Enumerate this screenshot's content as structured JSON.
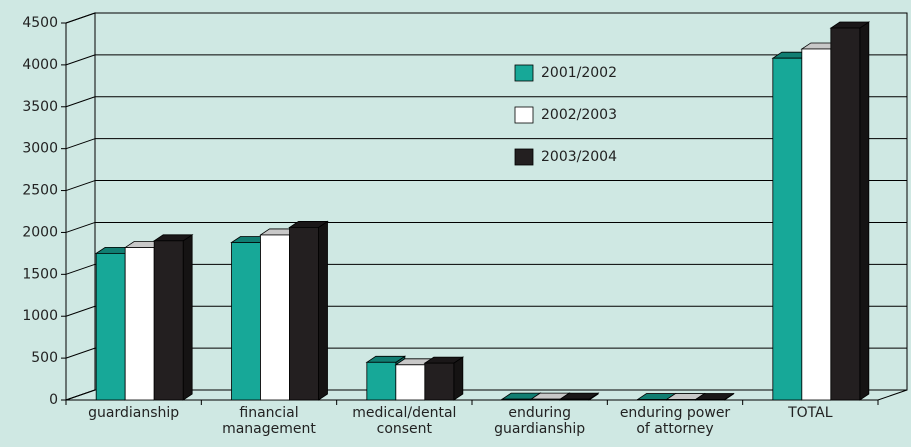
{
  "chart_data": {
    "type": "bar3d",
    "categories": [
      "guardianship",
      "financial management",
      "medical/dental consent",
      "enduring guardianship",
      "enduring power of attorney",
      "TOTAL"
    ],
    "series": [
      {
        "name": "2001/2002",
        "color": "#17a898",
        "values": [
          1750,
          1880,
          450,
          10,
          5,
          4080
        ]
      },
      {
        "name": "2002/2003",
        "color": "#ffffff",
        "values": [
          1820,
          1970,
          420,
          10,
          5,
          4190
        ]
      },
      {
        "name": "2003/2004",
        "color": "#231f20",
        "values": [
          1900,
          2060,
          440,
          10,
          5,
          4440
        ]
      }
    ],
    "ylim": [
      0,
      4500
    ],
    "yticks": [
      0,
      500,
      1000,
      1500,
      2000,
      2500,
      3000,
      3500,
      4000,
      4500
    ],
    "grid": true
  }
}
